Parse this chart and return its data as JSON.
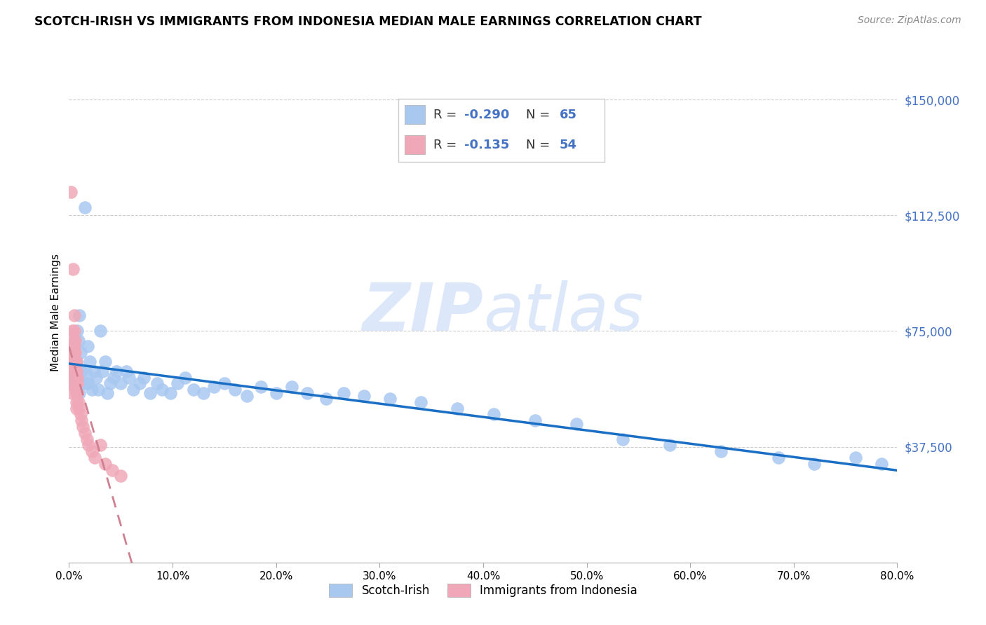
{
  "title": "SCOTCH-IRISH VS IMMIGRANTS FROM INDONESIA MEDIAN MALE EARNINGS CORRELATION CHART",
  "source": "Source: ZipAtlas.com",
  "ylabel": "Median Male Earnings",
  "ytick_labels": [
    "$37,500",
    "$75,000",
    "$112,500",
    "$150,000"
  ],
  "ytick_values": [
    37500,
    75000,
    112500,
    150000
  ],
  "ymin": 0,
  "ymax": 162000,
  "xmin": 0.0,
  "xmax": 0.8,
  "legend_r1": "-0.290",
  "legend_n1": "65",
  "legend_r2": "-0.135",
  "legend_n2": "54",
  "watermark_zip": "ZIP",
  "watermark_atlas": "atlas",
  "color_blue": "#a8c8f0",
  "color_pink": "#f0a8b8",
  "color_blue_line": "#1a6fc4",
  "color_pink_line": "#d08090",
  "color_ytick": "#4472c4",
  "scotch_irish_x": [
    0.005,
    0.007,
    0.008,
    0.008,
    0.009,
    0.01,
    0.01,
    0.011,
    0.012,
    0.013,
    0.015,
    0.016,
    0.017,
    0.018,
    0.019,
    0.02,
    0.022,
    0.024,
    0.026,
    0.028,
    0.03,
    0.032,
    0.035,
    0.037,
    0.04,
    0.043,
    0.046,
    0.05,
    0.055,
    0.058,
    0.062,
    0.068,
    0.072,
    0.078,
    0.085,
    0.09,
    0.098,
    0.105,
    0.112,
    0.12,
    0.13,
    0.14,
    0.15,
    0.16,
    0.172,
    0.185,
    0.2,
    0.215,
    0.23,
    0.248,
    0.265,
    0.285,
    0.31,
    0.34,
    0.375,
    0.41,
    0.45,
    0.49,
    0.535,
    0.58,
    0.63,
    0.685,
    0.72,
    0.76,
    0.785
  ],
  "scotch_irish_y": [
    60000,
    65000,
    75000,
    58000,
    72000,
    80000,
    55000,
    68000,
    62000,
    58000,
    115000,
    62000,
    58000,
    70000,
    58000,
    65000,
    56000,
    62000,
    60000,
    56000,
    75000,
    62000,
    65000,
    55000,
    58000,
    60000,
    62000,
    58000,
    62000,
    60000,
    56000,
    58000,
    60000,
    55000,
    58000,
    56000,
    55000,
    58000,
    60000,
    56000,
    55000,
    57000,
    58000,
    56000,
    54000,
    57000,
    55000,
    57000,
    55000,
    53000,
    55000,
    54000,
    53000,
    52000,
    50000,
    48000,
    46000,
    45000,
    40000,
    38000,
    36000,
    34000,
    32000,
    34000,
    32000
  ],
  "indonesia_x": [
    0.002,
    0.002,
    0.003,
    0.003,
    0.003,
    0.003,
    0.003,
    0.003,
    0.003,
    0.003,
    0.004,
    0.004,
    0.004,
    0.004,
    0.004,
    0.004,
    0.004,
    0.005,
    0.005,
    0.005,
    0.005,
    0.005,
    0.005,
    0.005,
    0.005,
    0.006,
    0.006,
    0.006,
    0.006,
    0.006,
    0.007,
    0.007,
    0.007,
    0.007,
    0.007,
    0.007,
    0.007,
    0.008,
    0.008,
    0.008,
    0.009,
    0.01,
    0.011,
    0.012,
    0.013,
    0.015,
    0.017,
    0.019,
    0.022,
    0.025,
    0.03,
    0.035,
    0.042,
    0.05
  ],
  "indonesia_y": [
    120000,
    68000,
    75000,
    70000,
    68000,
    65000,
    62000,
    60000,
    58000,
    55000,
    95000,
    72000,
    70000,
    68000,
    65000,
    62000,
    60000,
    80000,
    75000,
    70000,
    68000,
    65000,
    62000,
    60000,
    57000,
    72000,
    68000,
    65000,
    62000,
    58000,
    65000,
    62000,
    60000,
    58000,
    55000,
    52000,
    50000,
    60000,
    58000,
    55000,
    52000,
    50000,
    48000,
    46000,
    44000,
    42000,
    40000,
    38000,
    36000,
    34000,
    38000,
    32000,
    30000,
    28000
  ]
}
